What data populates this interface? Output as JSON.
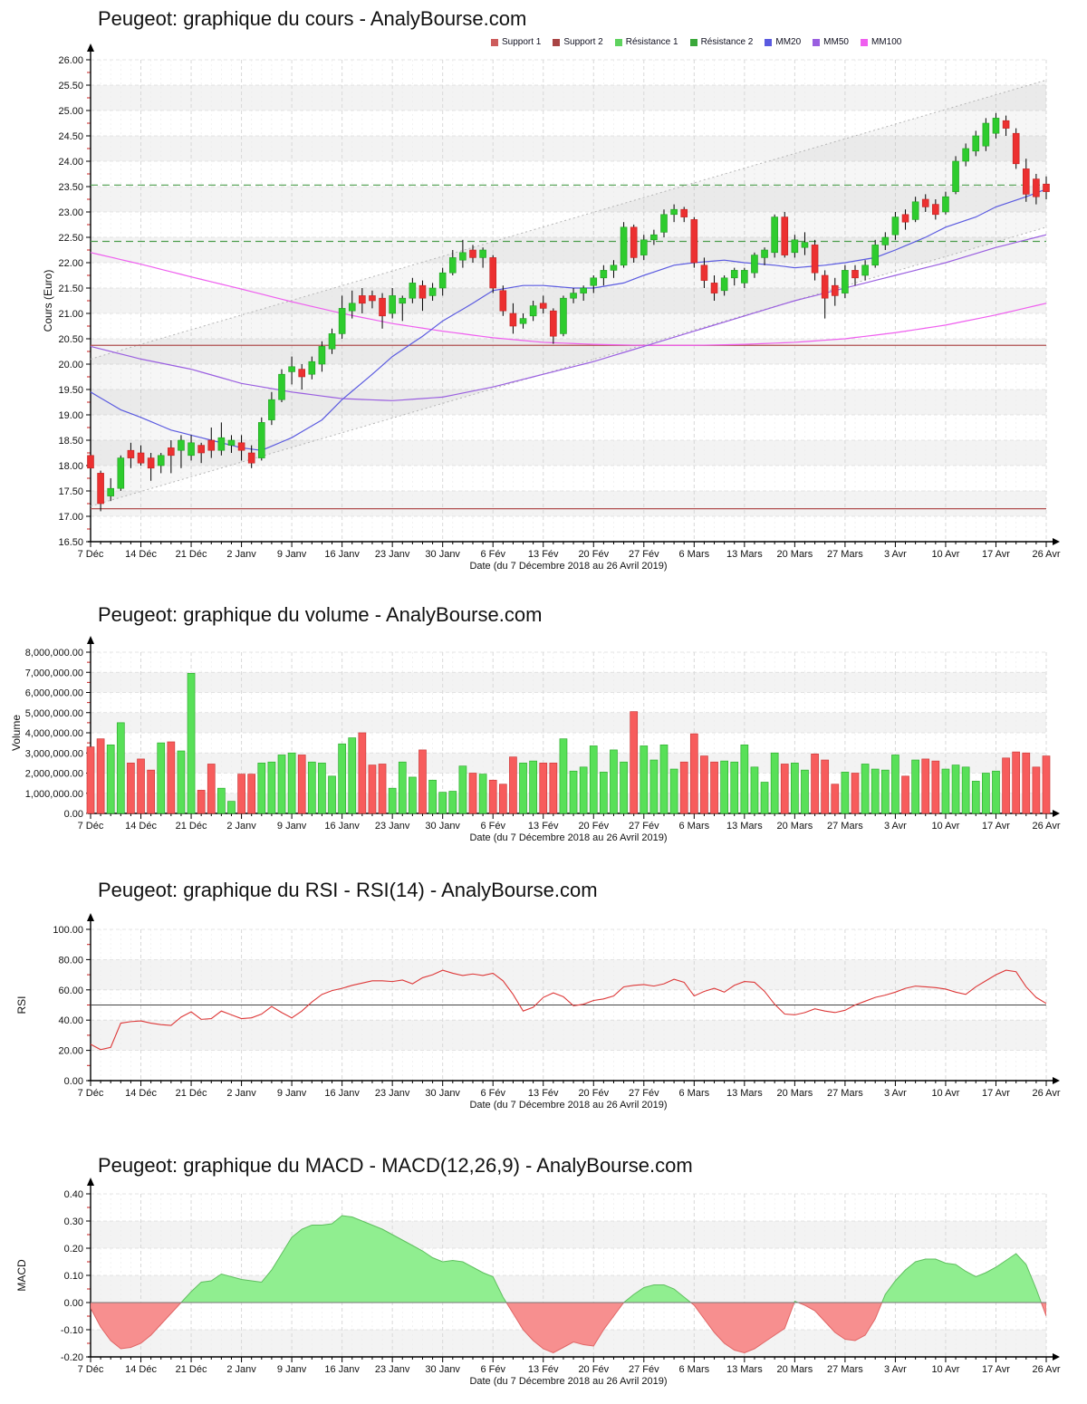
{
  "colors": {
    "up": "#2ecc2e",
    "up_edge": "#1f9e1f",
    "down": "#ec3030",
    "down_edge": "#c02020",
    "vol_up": "#58e058",
    "vol_up_edge": "#2fae2f",
    "vol_down": "#f75c5c",
    "vol_down_edge": "#cc3b3b",
    "mm20": "#5a5ae0",
    "mm50": "#9a5fe0",
    "mm100": "#ef5fef",
    "support": "#b05050",
    "resistance": "#4d9e4d",
    "rsi_line": "#dd3838",
    "rsi_midline": "#444444",
    "macd_pos": "#90ee90",
    "macd_pos_edge": "#5fbf5f",
    "macd_neg": "#f78f8f",
    "macd_neg_edge": "#e06666",
    "band": "#f3f3f3",
    "grid_minor": "#ededed",
    "grid_major": "#d8d8d8",
    "axis": "#000000",
    "minor_tick": "#cc2222",
    "channel": "#b5b5b5",
    "text": "#111111"
  },
  "x_axis": {
    "label": "Date (du 7 Décembre 2018 au 26 Avril 2019)",
    "tick_labels": [
      "7 Déc",
      "14 Déc",
      "21 Déc",
      "2 Janv",
      "9 Janv",
      "16 Janv",
      "23 Janv",
      "30 Janv",
      "6 Fév",
      "13 Fév",
      "20 Fév",
      "27 Fév",
      "6 Mars",
      "13 Mars",
      "20 Mars",
      "27 Mars",
      "3 Avr",
      "10 Avr",
      "17 Avr",
      "26 Avr"
    ],
    "tick_days": [
      0,
      5,
      10,
      15,
      20,
      25,
      30,
      35,
      40,
      45,
      50,
      55,
      60,
      65,
      70,
      75,
      80,
      85,
      90,
      95
    ],
    "n_days": 96
  },
  "chart_data": [
    {
      "type": "candlestick",
      "title": "Peugeot: graphique du cours - AnalyBourse.com",
      "ylabel": "Cours (Euro)",
      "ylim": [
        16.5,
        26.0
      ],
      "ystep": 0.5,
      "legend": [
        {
          "label": "Support 1",
          "color": "#cd5c5c"
        },
        {
          "label": "Support 2",
          "color": "#a94444"
        },
        {
          "label": "Résistance 1",
          "color": "#5fd35f"
        },
        {
          "label": "Résistance 2",
          "color": "#3aa83a"
        },
        {
          "label": "MM20",
          "color": "#5a5ae0"
        },
        {
          "label": "MM50",
          "color": "#9a5fe0"
        },
        {
          "label": "MM100",
          "color": "#ef5fef"
        }
      ],
      "support_levels": [
        20.37,
        17.15
      ],
      "resistance_levels": [
        23.53,
        22.42
      ],
      "trend_channel": {
        "upper_start_end": [
          20.1,
          25.6
        ],
        "lower_start_end": [
          17.2,
          22.7
        ]
      },
      "ohlc": [
        [
          18.2,
          18.25,
          17.8,
          17.95
        ],
        [
          17.85,
          17.9,
          17.1,
          17.25
        ],
        [
          17.4,
          17.75,
          17.3,
          17.55
        ],
        [
          17.55,
          18.2,
          17.5,
          18.15
        ],
        [
          18.3,
          18.45,
          17.95,
          18.15
        ],
        [
          18.25,
          18.4,
          18.0,
          18.05
        ],
        [
          18.15,
          18.25,
          17.7,
          17.95
        ],
        [
          18.0,
          18.25,
          17.85,
          18.2
        ],
        [
          18.35,
          18.5,
          17.85,
          18.2
        ],
        [
          18.3,
          18.6,
          17.95,
          18.5
        ],
        [
          18.2,
          18.6,
          18.1,
          18.45
        ],
        [
          18.4,
          18.45,
          18.05,
          18.25
        ],
        [
          18.5,
          18.75,
          18.15,
          18.3
        ],
        [
          18.3,
          18.85,
          18.2,
          18.55
        ],
        [
          18.4,
          18.6,
          18.25,
          18.5
        ],
        [
          18.45,
          18.6,
          18.1,
          18.3
        ],
        [
          18.25,
          18.4,
          17.95,
          18.05
        ],
        [
          18.15,
          18.95,
          18.1,
          18.85
        ],
        [
          18.9,
          19.45,
          18.8,
          19.3
        ],
        [
          19.3,
          19.9,
          19.25,
          19.8
        ],
        [
          19.85,
          20.15,
          19.6,
          19.95
        ],
        [
          19.9,
          20.0,
          19.5,
          19.75
        ],
        [
          19.8,
          20.15,
          19.7,
          20.05
        ],
        [
          20.0,
          20.45,
          19.85,
          20.35
        ],
        [
          20.3,
          20.7,
          20.2,
          20.6
        ],
        [
          20.6,
          21.35,
          20.5,
          21.1
        ],
        [
          21.05,
          21.45,
          20.9,
          21.2
        ],
        [
          21.35,
          21.5,
          21.0,
          21.2
        ],
        [
          21.35,
          21.45,
          21.1,
          21.25
        ],
        [
          21.3,
          21.4,
          20.7,
          20.95
        ],
        [
          21.0,
          21.5,
          20.9,
          21.35
        ],
        [
          21.2,
          21.35,
          20.85,
          21.3
        ],
        [
          21.3,
          21.7,
          21.2,
          21.6
        ],
        [
          21.55,
          21.65,
          21.05,
          21.3
        ],
        [
          21.35,
          21.6,
          21.25,
          21.5
        ],
        [
          21.5,
          21.9,
          21.35,
          21.8
        ],
        [
          21.8,
          22.25,
          21.75,
          22.1
        ],
        [
          22.05,
          22.45,
          21.9,
          22.2
        ],
        [
          22.25,
          22.35,
          22.0,
          22.1
        ],
        [
          22.1,
          22.3,
          21.9,
          22.25
        ],
        [
          22.1,
          22.15,
          21.4,
          21.5
        ],
        [
          21.45,
          21.55,
          20.95,
          21.05
        ],
        [
          21.0,
          21.2,
          20.6,
          20.75
        ],
        [
          20.8,
          21.0,
          20.7,
          20.9
        ],
        [
          20.95,
          21.25,
          20.85,
          21.15
        ],
        [
          21.2,
          21.35,
          21.0,
          21.1
        ],
        [
          21.05,
          21.1,
          20.4,
          20.55
        ],
        [
          20.6,
          21.35,
          20.55,
          21.3
        ],
        [
          21.3,
          21.5,
          21.2,
          21.4
        ],
        [
          21.4,
          21.55,
          21.25,
          21.5
        ],
        [
          21.55,
          21.75,
          21.4,
          21.7
        ],
        [
          21.7,
          21.95,
          21.55,
          21.85
        ],
        [
          21.85,
          22.05,
          21.7,
          21.95
        ],
        [
          21.95,
          22.8,
          21.9,
          22.7
        ],
        [
          22.7,
          22.75,
          22.0,
          22.1
        ],
        [
          22.15,
          22.55,
          22.05,
          22.45
        ],
        [
          22.45,
          22.65,
          22.35,
          22.55
        ],
        [
          22.6,
          23.05,
          22.5,
          22.95
        ],
        [
          22.95,
          23.15,
          22.8,
          23.05
        ],
        [
          23.05,
          23.1,
          22.8,
          22.9
        ],
        [
          22.85,
          22.9,
          21.9,
          22.0
        ],
        [
          21.95,
          22.1,
          21.5,
          21.65
        ],
        [
          21.6,
          21.75,
          21.25,
          21.4
        ],
        [
          21.45,
          21.75,
          21.35,
          21.7
        ],
        [
          21.7,
          21.9,
          21.55,
          21.85
        ],
        [
          21.6,
          21.9,
          21.5,
          21.85
        ],
        [
          21.8,
          22.2,
          21.7,
          22.15
        ],
        [
          22.1,
          22.3,
          21.95,
          22.25
        ],
        [
          22.2,
          22.95,
          22.1,
          22.9
        ],
        [
          22.9,
          23.0,
          22.1,
          22.15
        ],
        [
          22.2,
          22.55,
          22.1,
          22.45
        ],
        [
          22.3,
          22.6,
          22.15,
          22.4
        ],
        [
          22.35,
          22.45,
          21.65,
          21.8
        ],
        [
          21.75,
          21.85,
          20.9,
          21.3
        ],
        [
          21.55,
          21.7,
          21.15,
          21.35
        ],
        [
          21.4,
          21.95,
          21.3,
          21.85
        ],
        [
          21.85,
          21.95,
          21.55,
          21.7
        ],
        [
          21.75,
          22.05,
          21.65,
          21.95
        ],
        [
          21.95,
          22.45,
          21.9,
          22.35
        ],
        [
          22.35,
          22.6,
          22.25,
          22.5
        ],
        [
          22.55,
          23.0,
          22.45,
          22.9
        ],
        [
          22.95,
          23.05,
          22.65,
          22.8
        ],
        [
          22.85,
          23.3,
          22.8,
          23.2
        ],
        [
          23.25,
          23.35,
          23.0,
          23.1
        ],
        [
          23.15,
          23.25,
          22.85,
          22.95
        ],
        [
          23.0,
          23.4,
          22.95,
          23.3
        ],
        [
          23.4,
          24.1,
          23.35,
          24.0
        ],
        [
          24.0,
          24.35,
          23.9,
          24.25
        ],
        [
          24.2,
          24.6,
          24.1,
          24.5
        ],
        [
          24.3,
          24.85,
          24.2,
          24.75
        ],
        [
          24.55,
          24.95,
          24.45,
          24.85
        ],
        [
          24.8,
          24.9,
          24.5,
          24.65
        ],
        [
          24.55,
          24.65,
          23.85,
          23.95
        ],
        [
          23.85,
          24.05,
          23.2,
          23.35
        ],
        [
          23.65,
          23.75,
          23.15,
          23.3
        ],
        [
          23.55,
          23.7,
          23.25,
          23.4
        ]
      ],
      "mm20_points": [
        [
          0,
          19.45
        ],
        [
          3,
          19.1
        ],
        [
          5,
          18.95
        ],
        [
          8,
          18.7
        ],
        [
          10,
          18.6
        ],
        [
          13,
          18.45
        ],
        [
          15,
          18.35
        ],
        [
          17,
          18.3
        ],
        [
          20,
          18.55
        ],
        [
          23,
          18.9
        ],
        [
          25,
          19.3
        ],
        [
          28,
          19.8
        ],
        [
          30,
          20.15
        ],
        [
          33,
          20.55
        ],
        [
          35,
          20.85
        ],
        [
          38,
          21.2
        ],
        [
          40,
          21.45
        ],
        [
          43,
          21.55
        ],
        [
          45,
          21.55
        ],
        [
          48,
          21.5
        ],
        [
          50,
          21.5
        ],
        [
          53,
          21.6
        ],
        [
          55,
          21.75
        ],
        [
          58,
          21.95
        ],
        [
          60,
          22.0
        ],
        [
          63,
          22.05
        ],
        [
          65,
          22.0
        ],
        [
          68,
          21.95
        ],
        [
          70,
          21.9
        ],
        [
          73,
          21.95
        ],
        [
          75,
          22.0
        ],
        [
          78,
          22.1
        ],
        [
          80,
          22.25
        ],
        [
          83,
          22.5
        ],
        [
          85,
          22.7
        ],
        [
          88,
          22.9
        ],
        [
          90,
          23.1
        ],
        [
          93,
          23.3
        ],
        [
          95,
          23.45
        ]
      ],
      "mm50_points": [
        [
          0,
          20.35
        ],
        [
          5,
          20.1
        ],
        [
          10,
          19.9
        ],
        [
          15,
          19.62
        ],
        [
          20,
          19.45
        ],
        [
          25,
          19.32
        ],
        [
          30,
          19.28
        ],
        [
          35,
          19.35
        ],
        [
          40,
          19.55
        ],
        [
          45,
          19.8
        ],
        [
          50,
          20.05
        ],
        [
          55,
          20.35
        ],
        [
          60,
          20.65
        ],
        [
          65,
          20.95
        ],
        [
          70,
          21.25
        ],
        [
          75,
          21.5
        ],
        [
          80,
          21.75
        ],
        [
          85,
          22.0
        ],
        [
          90,
          22.3
        ],
        [
          95,
          22.55
        ]
      ],
      "mm100_points": [
        [
          0,
          22.2
        ],
        [
          5,
          21.97
        ],
        [
          10,
          21.72
        ],
        [
          15,
          21.48
        ],
        [
          20,
          21.23
        ],
        [
          25,
          21.0
        ],
        [
          30,
          20.8
        ],
        [
          35,
          20.65
        ],
        [
          40,
          20.52
        ],
        [
          45,
          20.43
        ],
        [
          50,
          20.39
        ],
        [
          55,
          20.37
        ],
        [
          60,
          20.37
        ],
        [
          65,
          20.39
        ],
        [
          70,
          20.43
        ],
        [
          75,
          20.5
        ],
        [
          80,
          20.62
        ],
        [
          85,
          20.77
        ],
        [
          90,
          20.97
        ],
        [
          95,
          21.2
        ]
      ]
    },
    {
      "type": "bar",
      "title": "Peugeot: graphique du volume - AnalyBourse.com",
      "ylabel": "Volume",
      "ylim": [
        0,
        8000000
      ],
      "ystep": 1000000,
      "values": [
        3300000,
        3700000,
        3400000,
        4500000,
        2500000,
        2700000,
        2150000,
        3500000,
        3550000,
        3100000,
        6950000,
        1150000,
        2450000,
        1250000,
        600000,
        1950000,
        1950000,
        2500000,
        2550000,
        2900000,
        3000000,
        2900000,
        2550000,
        2500000,
        1850000,
        3450000,
        3750000,
        4000000,
        2400000,
        2450000,
        1250000,
        2550000,
        1800000,
        3150000,
        1650000,
        1050000,
        1100000,
        2350000,
        2000000,
        1950000,
        1650000,
        1450000,
        2800000,
        2500000,
        2600000,
        2500000,
        2500000,
        3700000,
        2100000,
        2300000,
        3350000,
        2050000,
        3150000,
        2550000,
        5050000,
        3350000,
        2650000,
        3400000,
        2200000,
        2550000,
        3950000,
        2850000,
        2550000,
        2600000,
        2550000,
        3400000,
        2300000,
        1550000,
        3000000,
        2450000,
        2500000,
        2150000,
        2950000,
        2650000,
        1450000,
        2050000,
        2000000,
        2450000,
        2200000,
        2150000,
        2900000,
        1850000,
        2650000,
        2700000,
        2600000,
        2200000,
        2400000,
        2300000,
        1600000,
        2000000,
        2100000,
        2750000,
        3050000,
        3000000,
        2300000,
        2850000
      ]
    },
    {
      "type": "line",
      "title": "Peugeot: graphique du RSI - RSI(14) - AnalyBourse.com",
      "ylabel": "RSI",
      "ylim": [
        0,
        100
      ],
      "ystep": 20,
      "midline": 50,
      "values": [
        24,
        20.5,
        22,
        38,
        39,
        39.5,
        38,
        37,
        36.5,
        42,
        45.5,
        40.5,
        41,
        46,
        43.5,
        41,
        41.5,
        44,
        49,
        45,
        41.5,
        46,
        52,
        57,
        59.5,
        61,
        63,
        64.5,
        66,
        66,
        65.5,
        66.5,
        64,
        68,
        70,
        73,
        71,
        69.5,
        70.5,
        69.5,
        71,
        66,
        57,
        46,
        48.5,
        55,
        58,
        55.5,
        49.5,
        50.5,
        53,
        54,
        56,
        62,
        63,
        63.5,
        62.5,
        64,
        67,
        65,
        56,
        59,
        61,
        58.5,
        63,
        65.5,
        65,
        59,
        50.5,
        44,
        43.5,
        45,
        47.5,
        46,
        45,
        46.5,
        50,
        52.5,
        55,
        56.5,
        58.5,
        61,
        62.5,
        62,
        61.5,
        60.5,
        58.5,
        57,
        62,
        66,
        70,
        73,
        72,
        62,
        55,
        51
      ]
    },
    {
      "type": "area",
      "title": "Peugeot: graphique du MACD - MACD(12,26,9) - AnalyBourse.com",
      "ylabel": "MACD",
      "ylim": [
        -0.2,
        0.4
      ],
      "ystep": 0.1,
      "values": [
        -0.02,
        -0.09,
        -0.14,
        -0.17,
        -0.165,
        -0.15,
        -0.12,
        -0.08,
        -0.04,
        0,
        0.04,
        0.075,
        0.08,
        0.105,
        0.095,
        0.085,
        0.08,
        0.075,
        0.12,
        0.18,
        0.24,
        0.27,
        0.285,
        0.285,
        0.29,
        0.32,
        0.315,
        0.3,
        0.285,
        0.27,
        0.25,
        0.23,
        0.21,
        0.19,
        0.165,
        0.15,
        0.155,
        0.15,
        0.13,
        0.11,
        0.095,
        0.02,
        -0.04,
        -0.1,
        -0.14,
        -0.17,
        -0.185,
        -0.165,
        -0.145,
        -0.155,
        -0.16,
        -0.1,
        -0.05,
        0,
        0.03,
        0.055,
        0.065,
        0.065,
        0.05,
        0.02,
        -0.01,
        -0.06,
        -0.11,
        -0.15,
        -0.175,
        -0.185,
        -0.17,
        -0.145,
        -0.12,
        -0.095,
        0.005,
        -0.01,
        -0.03,
        -0.07,
        -0.11,
        -0.135,
        -0.14,
        -0.12,
        -0.06,
        0.03,
        0.08,
        0.12,
        0.15,
        0.16,
        0.16,
        0.145,
        0.14,
        0.115,
        0.095,
        0.11,
        0.13,
        0.155,
        0.18,
        0.14,
        0.05,
        -0.05
      ]
    }
  ]
}
